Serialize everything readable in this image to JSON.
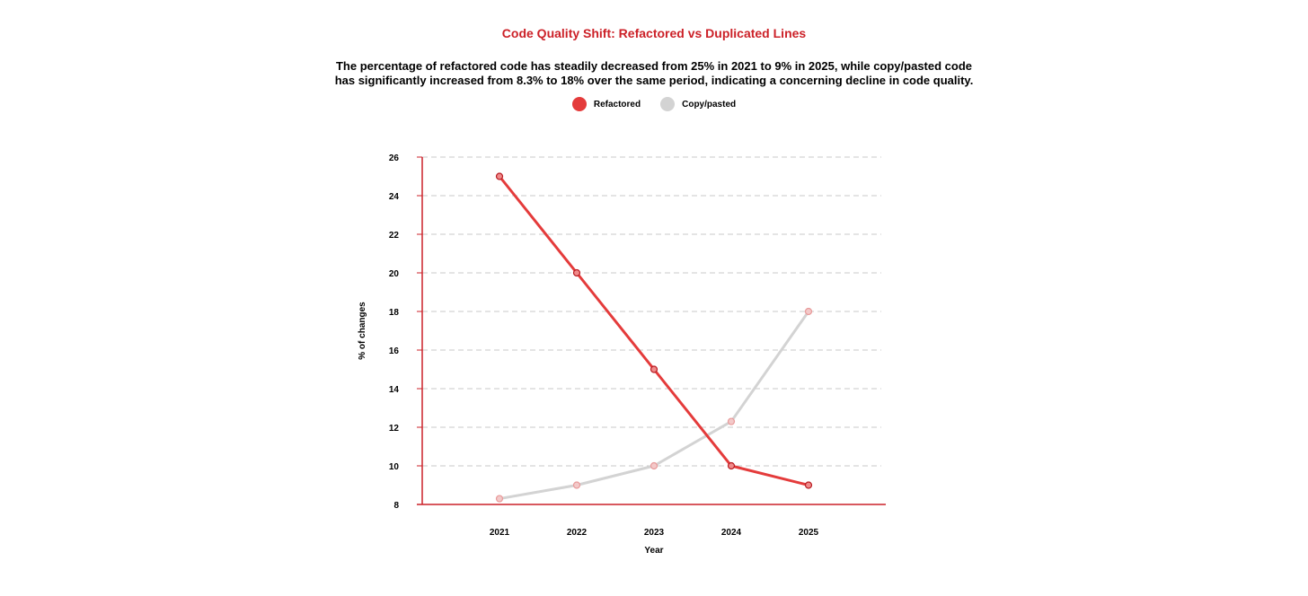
{
  "chart_data": {
    "type": "line",
    "title": "Code Quality Shift: Refactored vs Duplicated Lines",
    "subtitle": "The percentage of refactored code has steadily decreased from 25% in 2021 to 9% in 2025, while copy/pasted code has significantly increased from 8.3% to 18% over the same period, indicating a concerning decline in code quality.",
    "xlabel": "Year",
    "ylabel": "% of changes",
    "categories": [
      "2021",
      "2022",
      "2023",
      "2024",
      "2025"
    ],
    "yticks": [
      8,
      10,
      12,
      14,
      16,
      18,
      20,
      22,
      24,
      26
    ],
    "ylim": [
      8,
      26
    ],
    "grid": true,
    "legend_position": "top-center",
    "series": [
      {
        "name": "Refactored",
        "color": "#e43b3b",
        "values": [
          25,
          20,
          15,
          10,
          9
        ]
      },
      {
        "name": "Copy/pasted",
        "color": "#d3d3d3",
        "values": [
          8.3,
          9,
          10,
          12.3,
          18
        ]
      }
    ]
  },
  "colors": {
    "title": "#cc2128",
    "axis": "#cc2128",
    "grid": "#c8c8c8",
    "marker_fill_copy": "#f3c9c9",
    "marker_stroke_copy": "#e89a9a"
  }
}
